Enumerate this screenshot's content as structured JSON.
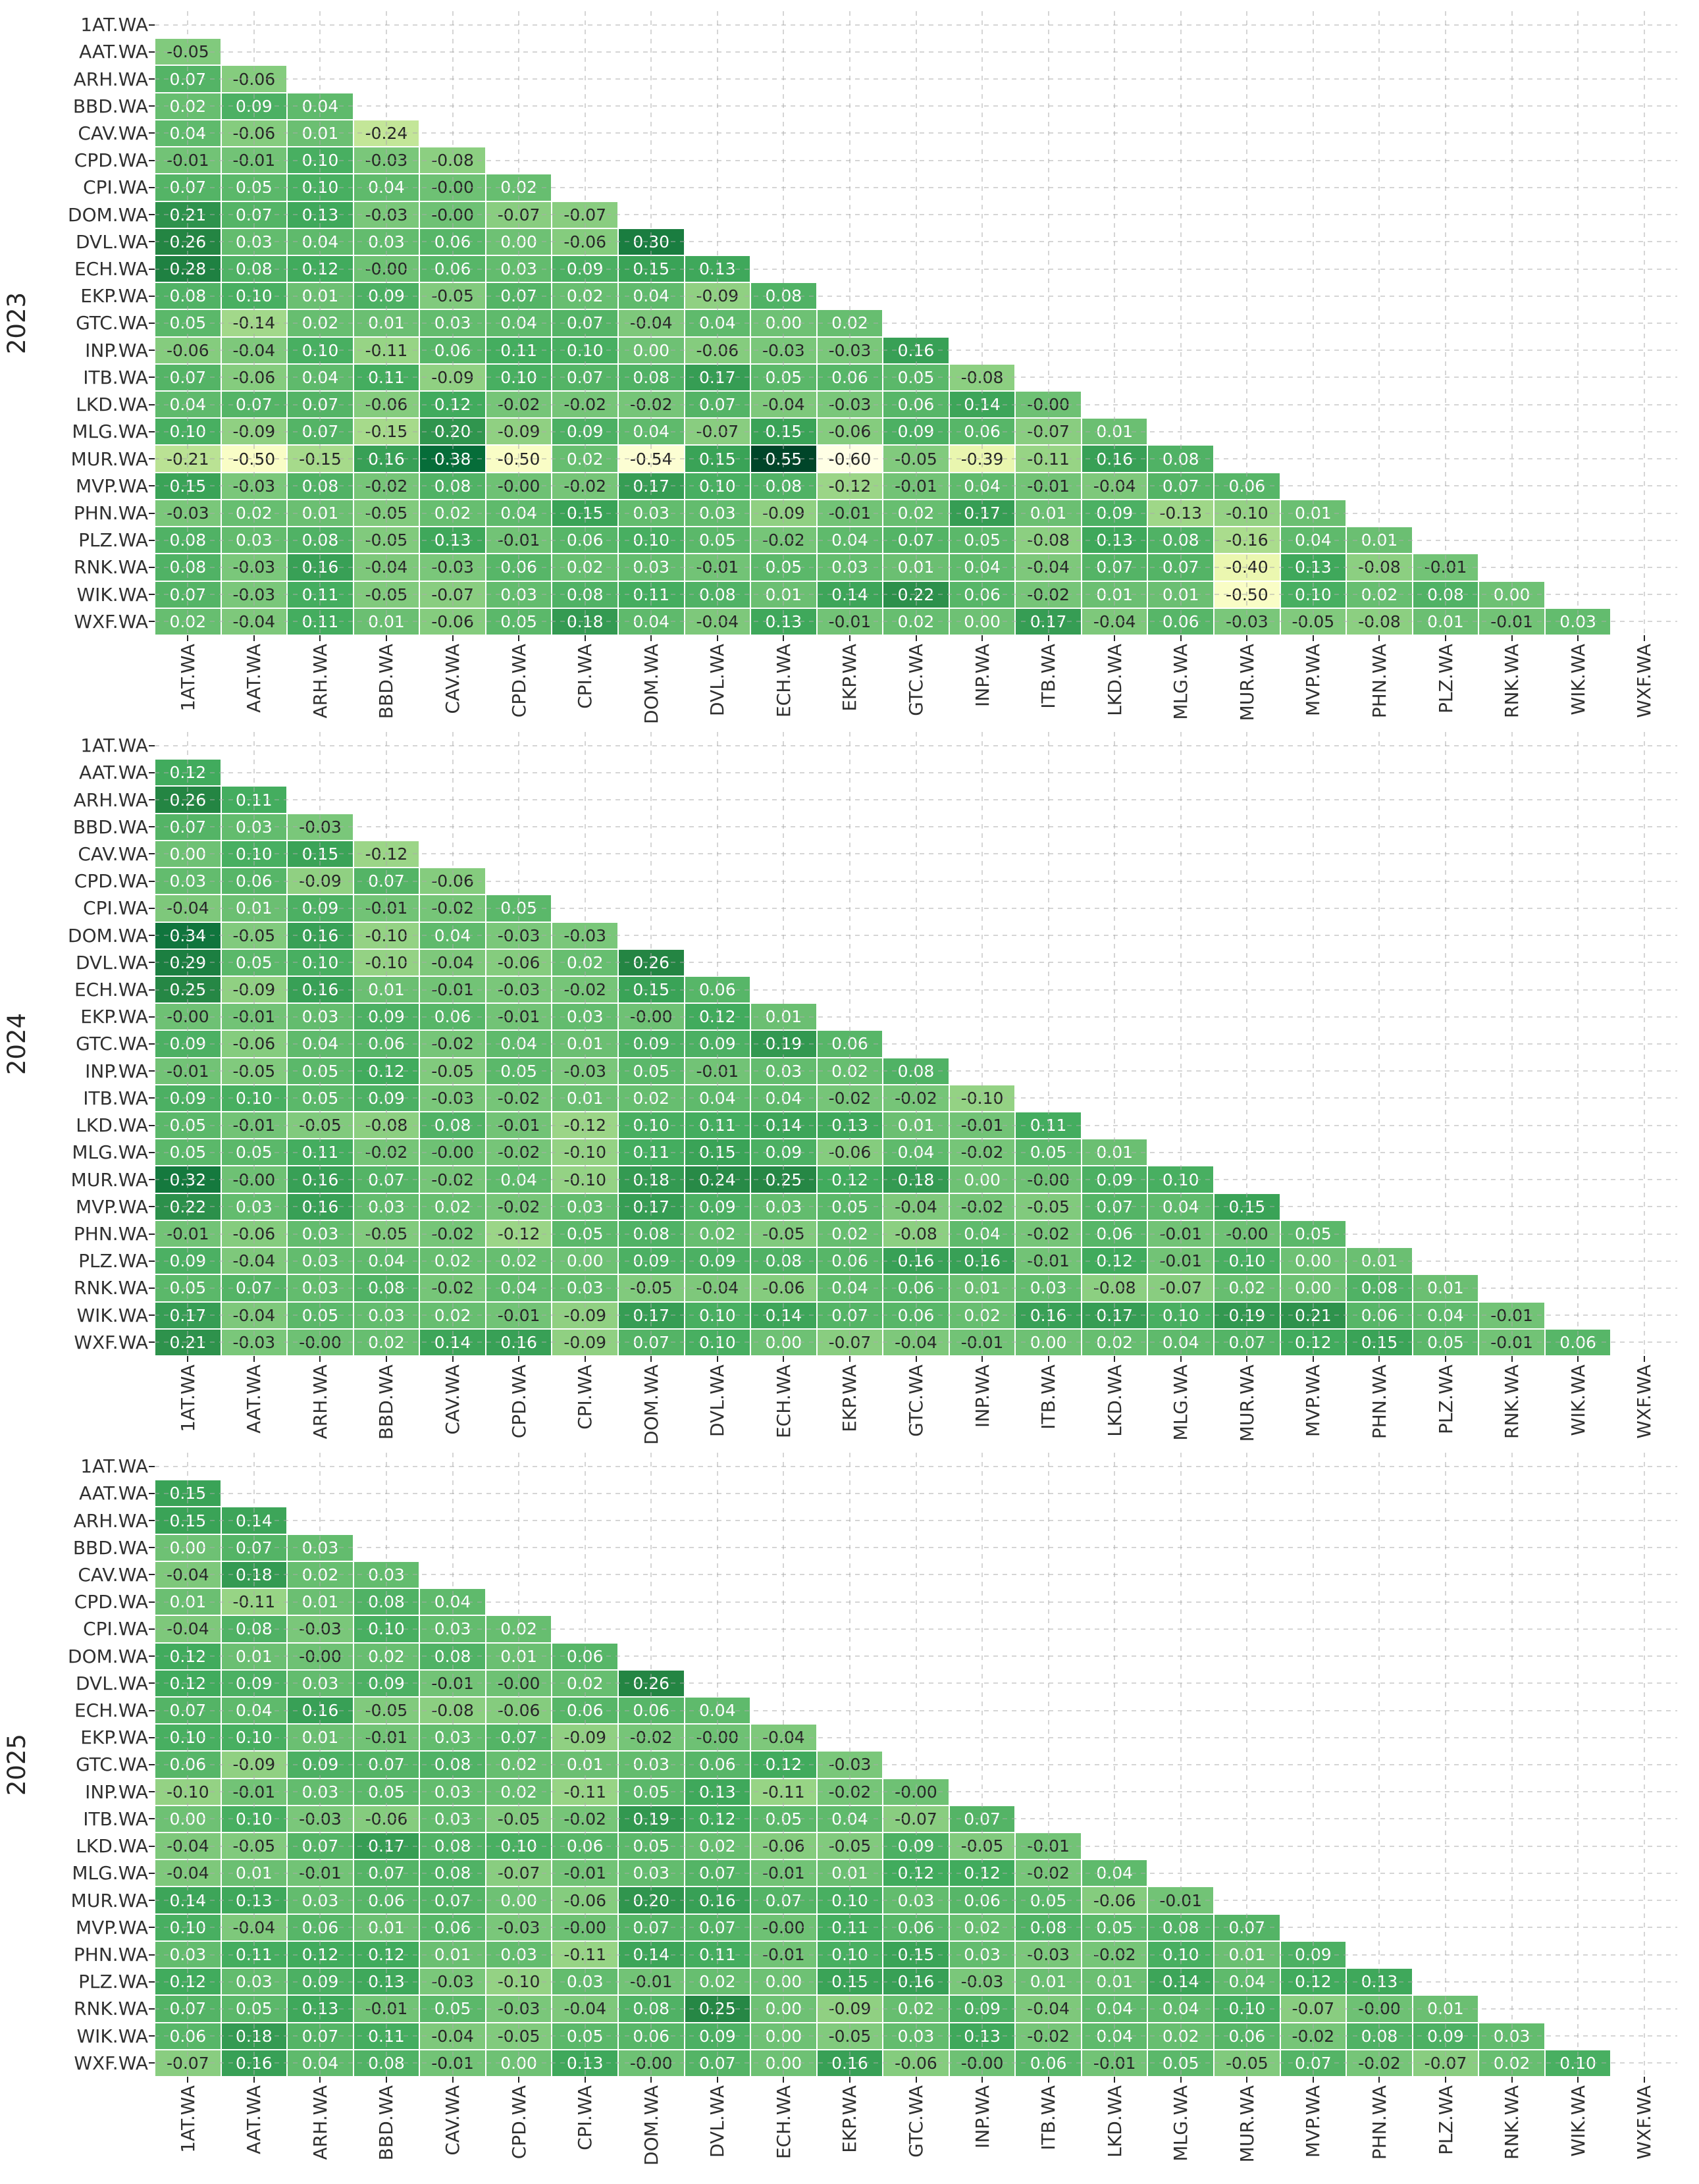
{
  "page": {
    "background": "#ffffff"
  },
  "styles": {
    "grid_color": "#ababab",
    "tick_color": "#262626",
    "label_color": "#303030",
    "annot_negative_color": "#262626",
    "annot_positive_color": "#ffffff",
    "cell_border_color": "#ffffff"
  },
  "colormap": {
    "name": "YlGn",
    "vmin": -0.6,
    "vmax": 0.55,
    "stops": [
      "#ffffe5",
      "#f7fcb9",
      "#d9f0a3",
      "#addd8e",
      "#78c679",
      "#41ab5d",
      "#238443",
      "#006837",
      "#004529"
    ]
  },
  "tickers": [
    "1AT.WA",
    "AAT.WA",
    "ARH.WA",
    "BBD.WA",
    "CAV.WA",
    "CPD.WA",
    "CPI.WA",
    "DOM.WA",
    "DVL.WA",
    "ECH.WA",
    "EKP.WA",
    "GTC.WA",
    "INP.WA",
    "ITB.WA",
    "LKD.WA",
    "MLG.WA",
    "MUR.WA",
    "MVP.WA",
    "PHN.WA",
    "PLZ.WA",
    "RNK.WA",
    "WIK.WA",
    "WXF.WA"
  ],
  "chart_data": [
    {
      "type": "heatmap",
      "year": "2023",
      "shape": "lower-triangle-correlation",
      "labels": [
        "1AT.WA",
        "AAT.WA",
        "ARH.WA",
        "BBD.WA",
        "CAV.WA",
        "CPD.WA",
        "CPI.WA",
        "DOM.WA",
        "DVL.WA",
        "ECH.WA",
        "EKP.WA",
        "GTC.WA",
        "INP.WA",
        "ITB.WA",
        "LKD.WA",
        "MLG.WA",
        "MUR.WA",
        "MVP.WA",
        "PHN.WA",
        "PLZ.WA",
        "RNK.WA",
        "WIK.WA",
        "WXF.WA"
      ],
      "rows": [
        [],
        [
          "-0.05"
        ],
        [
          "0.07",
          "-0.06"
        ],
        [
          "0.02",
          "0.09",
          "0.04"
        ],
        [
          "0.04",
          "-0.06",
          "0.01",
          "-0.24"
        ],
        [
          "-0.01",
          "-0.01",
          "0.10",
          "-0.03",
          "-0.08"
        ],
        [
          "0.07",
          "0.05",
          "0.10",
          "0.04",
          "-0.00",
          "0.02"
        ],
        [
          "0.21",
          "0.07",
          "0.13",
          "-0.03",
          "-0.00",
          "-0.07",
          "-0.07"
        ],
        [
          "0.26",
          "0.03",
          "0.04",
          "0.03",
          "0.06",
          "0.00",
          "-0.06",
          "0.30"
        ],
        [
          "0.28",
          "0.08",
          "0.12",
          "-0.00",
          "0.06",
          "0.03",
          "0.09",
          "0.15",
          "0.13"
        ],
        [
          "0.08",
          "0.10",
          "0.01",
          "0.09",
          "-0.05",
          "0.07",
          "0.02",
          "0.04",
          "-0.09",
          "0.08"
        ],
        [
          "0.05",
          "-0.14",
          "0.02",
          "0.01",
          "0.03",
          "0.04",
          "0.07",
          "-0.04",
          "0.04",
          "0.00",
          "0.02"
        ],
        [
          "-0.06",
          "-0.04",
          "0.10",
          "-0.11",
          "0.06",
          "0.11",
          "0.10",
          "0.00",
          "-0.06",
          "-0.03",
          "-0.03",
          "0.16"
        ],
        [
          "0.07",
          "-0.06",
          "0.04",
          "0.11",
          "-0.09",
          "0.10",
          "0.07",
          "0.08",
          "0.17",
          "0.05",
          "0.06",
          "0.05",
          "-0.08"
        ],
        [
          "0.04",
          "0.07",
          "0.07",
          "-0.06",
          "0.12",
          "-0.02",
          "-0.02",
          "-0.02",
          "0.07",
          "-0.04",
          "-0.03",
          "0.06",
          "0.14",
          "-0.00"
        ],
        [
          "0.10",
          "-0.09",
          "0.07",
          "-0.15",
          "0.20",
          "-0.09",
          "0.09",
          "0.04",
          "-0.07",
          "0.15",
          "-0.06",
          "0.09",
          "0.06",
          "-0.07",
          "0.01"
        ],
        [
          "-0.21",
          "-0.50",
          "-0.15",
          "0.16",
          "0.38",
          "-0.50",
          "0.02",
          "-0.54",
          "0.15",
          "0.55",
          "-0.60",
          "-0.05",
          "-0.39",
          "-0.11",
          "0.16",
          "0.08"
        ],
        [
          "0.15",
          "-0.03",
          "0.08",
          "-0.02",
          "0.08",
          "-0.00",
          "-0.02",
          "0.17",
          "0.10",
          "0.08",
          "-0.12",
          "-0.01",
          "0.04",
          "-0.01",
          "-0.04",
          "0.07",
          "0.06"
        ],
        [
          "-0.03",
          "0.02",
          "0.01",
          "-0.05",
          "0.02",
          "0.04",
          "0.15",
          "0.03",
          "0.03",
          "-0.09",
          "-0.01",
          "0.02",
          "0.17",
          "0.01",
          "0.09",
          "-0.13",
          "-0.10",
          "0.01"
        ],
        [
          "0.08",
          "0.03",
          "0.08",
          "-0.05",
          "0.13",
          "-0.01",
          "0.06",
          "0.10",
          "0.05",
          "-0.02",
          "0.04",
          "0.07",
          "0.05",
          "-0.08",
          "0.13",
          "0.08",
          "-0.16",
          "0.04",
          "0.01"
        ],
        [
          "0.08",
          "-0.03",
          "0.16",
          "-0.04",
          "-0.03",
          "0.06",
          "0.02",
          "0.03",
          "-0.01",
          "0.05",
          "0.03",
          "0.01",
          "0.04",
          "-0.04",
          "0.07",
          "0.07",
          "-0.40",
          "0.13",
          "-0.08",
          "-0.01"
        ],
        [
          "0.07",
          "-0.03",
          "0.11",
          "-0.05",
          "-0.07",
          "0.03",
          "0.08",
          "0.11",
          "0.08",
          "0.01",
          "0.14",
          "0.22",
          "0.06",
          "-0.02",
          "0.01",
          "0.01",
          "-0.50",
          "0.10",
          "0.02",
          "0.08",
          "0.00"
        ],
        [
          "0.02",
          "-0.04",
          "0.11",
          "0.01",
          "-0.06",
          "0.05",
          "0.18",
          "0.04",
          "-0.04",
          "0.13",
          "-0.01",
          "0.02",
          "0.00",
          "0.17",
          "-0.04",
          "0.06",
          "-0.03",
          "-0.05",
          "-0.08",
          "0.01",
          "-0.01",
          "0.03"
        ]
      ]
    },
    {
      "type": "heatmap",
      "year": "2024",
      "shape": "lower-triangle-correlation",
      "labels": [
        "1AT.WA",
        "AAT.WA",
        "ARH.WA",
        "BBD.WA",
        "CAV.WA",
        "CPD.WA",
        "CPI.WA",
        "DOM.WA",
        "DVL.WA",
        "ECH.WA",
        "EKP.WA",
        "GTC.WA",
        "INP.WA",
        "ITB.WA",
        "LKD.WA",
        "MLG.WA",
        "MUR.WA",
        "MVP.WA",
        "PHN.WA",
        "PLZ.WA",
        "RNK.WA",
        "WIK.WA",
        "WXF.WA"
      ],
      "rows": [
        [],
        [
          "0.12"
        ],
        [
          "0.26",
          "0.11"
        ],
        [
          "0.07",
          "0.03",
          "-0.03"
        ],
        [
          "0.00",
          "0.10",
          "0.15",
          "-0.12"
        ],
        [
          "0.03",
          "0.06",
          "-0.09",
          "0.07",
          "-0.06"
        ],
        [
          "-0.04",
          "0.01",
          "0.09",
          "-0.01",
          "-0.02",
          "0.05"
        ],
        [
          "0.34",
          "-0.05",
          "0.16",
          "-0.10",
          "0.04",
          "-0.03",
          "-0.03"
        ],
        [
          "0.29",
          "0.05",
          "0.10",
          "-0.10",
          "-0.04",
          "-0.06",
          "0.02",
          "0.26"
        ],
        [
          "0.25",
          "-0.09",
          "0.16",
          "0.01",
          "-0.01",
          "-0.03",
          "-0.02",
          "0.15",
          "0.06"
        ],
        [
          "-0.00",
          "-0.01",
          "0.03",
          "0.09",
          "0.06",
          "-0.01",
          "0.03",
          "-0.00",
          "0.12",
          "0.01"
        ],
        [
          "0.09",
          "-0.06",
          "0.04",
          "0.06",
          "-0.02",
          "0.04",
          "0.01",
          "0.09",
          "0.09",
          "0.19",
          "0.06"
        ],
        [
          "-0.01",
          "-0.05",
          "0.05",
          "0.12",
          "-0.05",
          "0.05",
          "-0.03",
          "0.05",
          "-0.01",
          "0.03",
          "0.02",
          "0.08"
        ],
        [
          "0.09",
          "0.10",
          "0.05",
          "0.09",
          "-0.03",
          "-0.02",
          "0.01",
          "0.02",
          "0.04",
          "0.04",
          "-0.02",
          "-0.02",
          "-0.10"
        ],
        [
          "0.05",
          "-0.01",
          "-0.05",
          "-0.08",
          "0.08",
          "-0.01",
          "-0.12",
          "0.10",
          "0.11",
          "0.14",
          "0.13",
          "0.01",
          "-0.01",
          "0.11"
        ],
        [
          "0.05",
          "0.05",
          "0.11",
          "-0.02",
          "-0.00",
          "-0.02",
          "-0.10",
          "0.11",
          "0.15",
          "0.09",
          "-0.06",
          "0.04",
          "-0.02",
          "0.05",
          "0.01"
        ],
        [
          "0.32",
          "-0.00",
          "0.16",
          "0.07",
          "-0.02",
          "0.04",
          "-0.10",
          "0.18",
          "0.24",
          "0.25",
          "0.12",
          "0.18",
          "0.00",
          "-0.00",
          "0.09",
          "0.10"
        ],
        [
          "0.22",
          "0.03",
          "0.16",
          "0.03",
          "0.02",
          "-0.02",
          "0.03",
          "0.17",
          "0.09",
          "0.03",
          "0.05",
          "-0.04",
          "-0.02",
          "-0.05",
          "0.07",
          "0.04",
          "0.15"
        ],
        [
          "-0.01",
          "-0.06",
          "0.03",
          "-0.05",
          "-0.02",
          "-0.12",
          "0.05",
          "0.08",
          "0.02",
          "-0.05",
          "0.02",
          "-0.08",
          "0.04",
          "-0.02",
          "0.06",
          "-0.01",
          "-0.00",
          "0.05"
        ],
        [
          "0.09",
          "-0.04",
          "0.03",
          "0.04",
          "0.02",
          "0.02",
          "0.00",
          "0.09",
          "0.09",
          "0.08",
          "0.06",
          "0.16",
          "0.16",
          "-0.01",
          "0.12",
          "-0.01",
          "0.10",
          "0.00",
          "0.01"
        ],
        [
          "0.05",
          "0.07",
          "0.03",
          "0.08",
          "-0.02",
          "0.04",
          "0.03",
          "-0.05",
          "-0.04",
          "-0.06",
          "0.04",
          "0.06",
          "0.01",
          "0.03",
          "-0.08",
          "-0.07",
          "0.02",
          "0.00",
          "0.08",
          "0.01"
        ],
        [
          "0.17",
          "-0.04",
          "0.05",
          "0.03",
          "0.02",
          "-0.01",
          "-0.09",
          "0.17",
          "0.10",
          "0.14",
          "0.07",
          "0.06",
          "0.02",
          "0.16",
          "0.17",
          "0.10",
          "0.19",
          "0.21",
          "0.06",
          "0.04",
          "-0.01"
        ],
        [
          "0.21",
          "-0.03",
          "-0.00",
          "0.02",
          "0.14",
          "0.16",
          "-0.09",
          "0.07",
          "0.10",
          "0.00",
          "-0.07",
          "-0.04",
          "-0.01",
          "0.00",
          "0.02",
          "0.04",
          "0.07",
          "0.12",
          "0.15",
          "0.05",
          "-0.01",
          "0.06"
        ]
      ]
    },
    {
      "type": "heatmap",
      "year": "2025",
      "shape": "lower-triangle-correlation",
      "labels": [
        "1AT.WA",
        "AAT.WA",
        "ARH.WA",
        "BBD.WA",
        "CAV.WA",
        "CPD.WA",
        "CPI.WA",
        "DOM.WA",
        "DVL.WA",
        "ECH.WA",
        "EKP.WA",
        "GTC.WA",
        "INP.WA",
        "ITB.WA",
        "LKD.WA",
        "MLG.WA",
        "MUR.WA",
        "MVP.WA",
        "PHN.WA",
        "PLZ.WA",
        "RNK.WA",
        "WIK.WA",
        "WXF.WA"
      ],
      "rows": [
        [],
        [
          "0.15"
        ],
        [
          "0.15",
          "0.14"
        ],
        [
          "0.00",
          "0.07",
          "0.03"
        ],
        [
          "-0.04",
          "0.18",
          "0.02",
          "0.03"
        ],
        [
          "0.01",
          "-0.11",
          "0.01",
          "0.08",
          "0.04"
        ],
        [
          "-0.04",
          "0.08",
          "-0.03",
          "0.10",
          "0.03",
          "0.02"
        ],
        [
          "0.12",
          "0.01",
          "-0.00",
          "0.02",
          "0.08",
          "0.01",
          "0.06"
        ],
        [
          "0.12",
          "0.09",
          "0.03",
          "0.09",
          "-0.01",
          "-0.00",
          "0.02",
          "0.26"
        ],
        [
          "0.07",
          "0.04",
          "0.16",
          "-0.05",
          "-0.08",
          "-0.06",
          "0.06",
          "0.06",
          "0.04"
        ],
        [
          "0.10",
          "0.10",
          "0.01",
          "-0.01",
          "0.03",
          "0.07",
          "-0.09",
          "-0.02",
          "-0.00",
          "-0.04"
        ],
        [
          "0.06",
          "-0.09",
          "0.09",
          "0.07",
          "0.08",
          "0.02",
          "0.01",
          "0.03",
          "0.06",
          "0.12",
          "-0.03"
        ],
        [
          "-0.10",
          "-0.01",
          "0.03",
          "0.05",
          "0.03",
          "0.02",
          "-0.11",
          "0.05",
          "0.13",
          "-0.11",
          "-0.02",
          "-0.00"
        ],
        [
          "0.00",
          "0.10",
          "-0.03",
          "-0.06",
          "0.03",
          "-0.05",
          "-0.02",
          "0.19",
          "0.12",
          "0.05",
          "0.04",
          "-0.07",
          "0.07"
        ],
        [
          "-0.04",
          "-0.05",
          "0.07",
          "0.17",
          "0.08",
          "0.10",
          "0.06",
          "0.05",
          "0.02",
          "-0.06",
          "-0.05",
          "0.09",
          "-0.05",
          "-0.01"
        ],
        [
          "-0.04",
          "0.01",
          "-0.01",
          "0.07",
          "0.08",
          "-0.07",
          "-0.01",
          "0.03",
          "0.07",
          "-0.01",
          "0.01",
          "0.12",
          "0.12",
          "-0.02",
          "0.04"
        ],
        [
          "0.14",
          "0.13",
          "0.03",
          "0.06",
          "0.07",
          "0.00",
          "-0.06",
          "0.20",
          "0.16",
          "0.07",
          "0.10",
          "0.03",
          "0.06",
          "0.05",
          "-0.06",
          "-0.01"
        ],
        [
          "0.10",
          "-0.04",
          "0.06",
          "0.01",
          "0.06",
          "-0.03",
          "-0.00",
          "0.07",
          "0.07",
          "-0.00",
          "0.11",
          "0.06",
          "0.02",
          "0.08",
          "0.05",
          "0.08",
          "0.07"
        ],
        [
          "0.03",
          "0.11",
          "0.12",
          "0.12",
          "0.01",
          "0.03",
          "-0.11",
          "0.14",
          "0.11",
          "-0.01",
          "0.10",
          "0.15",
          "0.03",
          "-0.03",
          "-0.02",
          "0.10",
          "0.01",
          "0.09"
        ],
        [
          "0.12",
          "0.03",
          "0.09",
          "0.13",
          "-0.03",
          "-0.10",
          "0.03",
          "-0.01",
          "0.02",
          "0.00",
          "0.15",
          "0.16",
          "-0.03",
          "0.01",
          "0.01",
          "0.14",
          "0.04",
          "0.12",
          "0.13"
        ],
        [
          "0.07",
          "0.05",
          "0.13",
          "-0.01",
          "0.05",
          "-0.03",
          "-0.04",
          "0.08",
          "0.25",
          "0.00",
          "-0.09",
          "0.02",
          "0.09",
          "-0.04",
          "0.04",
          "0.04",
          "0.10",
          "-0.07",
          "-0.00",
          "0.01"
        ],
        [
          "0.06",
          "0.18",
          "0.07",
          "0.11",
          "-0.04",
          "-0.05",
          "0.05",
          "0.06",
          "0.09",
          "0.00",
          "-0.05",
          "0.03",
          "0.13",
          "-0.02",
          "0.04",
          "0.02",
          "0.06",
          "-0.02",
          "0.08",
          "0.09",
          "0.03"
        ],
        [
          "-0.07",
          "0.16",
          "0.04",
          "0.08",
          "-0.01",
          "0.00",
          "0.13",
          "-0.00",
          "0.07",
          "0.00",
          "0.16",
          "-0.06",
          "-0.00",
          "0.06",
          "-0.01",
          "0.05",
          "-0.05",
          "0.07",
          "-0.02",
          "-0.07",
          "0.02",
          "0.10"
        ]
      ]
    }
  ]
}
